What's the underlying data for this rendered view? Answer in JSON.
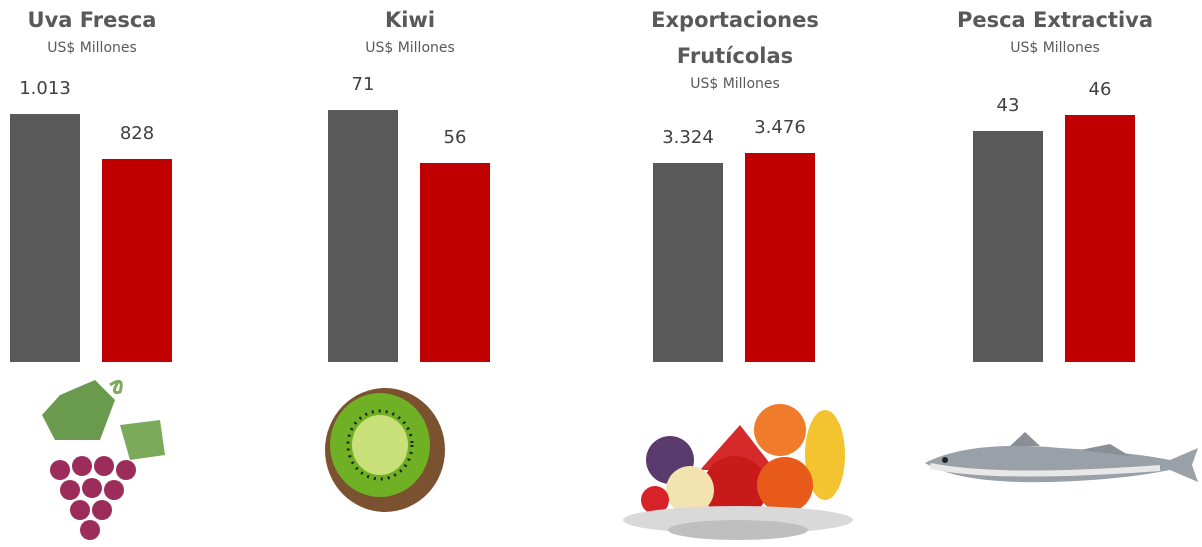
{
  "chart_data": [
    {
      "type": "bar",
      "title": "Uva Fresca",
      "subtitle": "US$ Millones",
      "values": [
        1013,
        828
      ],
      "value_labels": [
        "1.013",
        "828"
      ],
      "colors": [
        "#595959",
        "#c00000"
      ],
      "ylim": [
        0,
        1030
      ]
    },
    {
      "type": "bar",
      "title": "Kiwi",
      "subtitle": "US$ Millones",
      "values": [
        71,
        56
      ],
      "value_labels": [
        "71",
        "56"
      ],
      "colors": [
        "#595959",
        "#c00000"
      ],
      "ylim": [
        0,
        71
      ]
    },
    {
      "type": "bar",
      "title": "Exportaciones Frutícolas",
      "subtitle": "US$ Millones",
      "values": [
        3324,
        3476
      ],
      "value_labels": [
        "3.324",
        "3.476"
      ],
      "colors": [
        "#595959",
        "#c00000"
      ],
      "ylim": [
        0,
        4200
      ]
    },
    {
      "type": "bar",
      "title": "Pesca Extractiva",
      "subtitle": "US$ Millones",
      "values": [
        43,
        46
      ],
      "value_labels": [
        "43",
        "46"
      ],
      "colors": [
        "#595959",
        "#c00000"
      ],
      "ylim": [
        0,
        47
      ]
    }
  ]
}
